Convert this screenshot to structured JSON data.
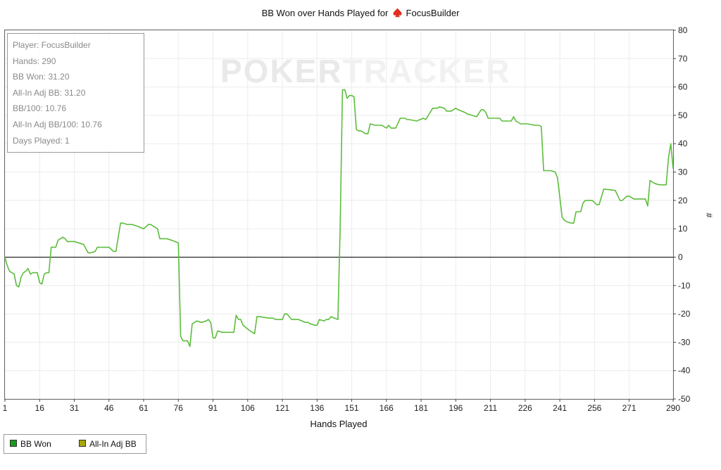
{
  "title": {
    "text": "BB Won over Hands Played for",
    "player": "FocusBuilder"
  },
  "watermark": {
    "part1": "POKER",
    "part2": "TRACKER"
  },
  "info_box": [
    "Player: FocusBuilder",
    "Hands: 290",
    "BB Won: 31.20",
    "All-In Adj BB: 31.20",
    "BB/100: 10.76",
    "All-In Adj BB/100: 10.76",
    "Days Played: 1"
  ],
  "legend": {
    "items": [
      {
        "label": "BB Won",
        "color": "#1a9a1a"
      },
      {
        "label": "All-In Adj BB",
        "color": "#a8a800"
      }
    ]
  },
  "colors": {
    "line": "#5cbd3c",
    "grid": "#ebebeb",
    "zero_line": "#000000",
    "frame": "#666666"
  },
  "chart_data": {
    "type": "line",
    "title": "BB Won over Hands Played for FocusBuilder",
    "xlabel": "Hands Played",
    "ylabel": "#",
    "xlim": [
      1,
      290
    ],
    "ylim": [
      -50,
      80
    ],
    "x_ticks": [
      1,
      16,
      31,
      46,
      61,
      76,
      91,
      106,
      121,
      136,
      151,
      166,
      181,
      196,
      211,
      226,
      241,
      256,
      271,
      290
    ],
    "y_ticks": [
      80,
      70,
      60,
      50,
      40,
      30,
      20,
      10,
      0,
      -10,
      -20,
      -30,
      -40,
      -50
    ],
    "grid": true,
    "legend_position": "bottom-left",
    "series": [
      {
        "name": "BB Won",
        "x": [
          1,
          2,
          3,
          5,
          6,
          7,
          8,
          9,
          10,
          11,
          12,
          13,
          15,
          16,
          17,
          18,
          19,
          20,
          21,
          22,
          23,
          24,
          25,
          26,
          27,
          28,
          29,
          30,
          31,
          35,
          37,
          38,
          40,
          41,
          42,
          46,
          48,
          49,
          51,
          52,
          54,
          55,
          56,
          58,
          61,
          63,
          64,
          65,
          66,
          67,
          68,
          70,
          71,
          73,
          76,
          77,
          78,
          80,
          81,
          82,
          83,
          84,
          86,
          88,
          89,
          90,
          91,
          92,
          93,
          95,
          96,
          100,
          101,
          102,
          103,
          104,
          107,
          109,
          110,
          111,
          115,
          117,
          118,
          120,
          121,
          122,
          123,
          125,
          127,
          128,
          131,
          132,
          133,
          135,
          136,
          137,
          139,
          140,
          141,
          142,
          145,
          146,
          147,
          148,
          149,
          150,
          151,
          152,
          153,
          154,
          155,
          157,
          158,
          159,
          161,
          162,
          164,
          166,
          167,
          168,
          170,
          172,
          174,
          175,
          176,
          179,
          182,
          183,
          186,
          188,
          189,
          191,
          192,
          194,
          196,
          197,
          200,
          201,
          203,
          205,
          207,
          208,
          209,
          210,
          212,
          215,
          216,
          218,
          220,
          221,
          222,
          224,
          227,
          230,
          232,
          233,
          234,
          237,
          239,
          240,
          242,
          243,
          244,
          246,
          247,
          248,
          250,
          251,
          252,
          255,
          257,
          258,
          260,
          265,
          267,
          268,
          270,
          271,
          273,
          278,
          279,
          280,
          281,
          282,
          284,
          285,
          286,
          287,
          288,
          289,
          290
        ],
        "y": [
          0,
          -3,
          -5,
          -6,
          -10,
          -10.5,
          -7,
          -5.5,
          -5,
          -4,
          -6,
          -5.5,
          -5.5,
          -9,
          -9.5,
          -6,
          -5.5,
          -5.5,
          3.5,
          3.5,
          3.5,
          6,
          6.5,
          7,
          6.5,
          5.5,
          5.5,
          5.5,
          5.5,
          4.5,
          1.5,
          1.5,
          2,
          3.5,
          3.5,
          3.5,
          2,
          2,
          12,
          12,
          11.5,
          11.5,
          11.5,
          11,
          10,
          11.5,
          11.5,
          11,
          10.5,
          10,
          6.5,
          6.5,
          6.5,
          6,
          5,
          -28,
          -29.5,
          -29.5,
          -31.5,
          -23.5,
          -23,
          -22.5,
          -23,
          -22.5,
          -22,
          -23,
          -28.5,
          -28.5,
          -26,
          -26.5,
          -26.5,
          -26.5,
          -20.5,
          -22,
          -22,
          -24,
          -26,
          -27,
          -21,
          -21,
          -21.5,
          -21.5,
          -22,
          -22,
          -22,
          -20,
          -20,
          -22,
          -22,
          -22,
          -23,
          -23,
          -23.5,
          -24,
          -24,
          -22,
          -22.5,
          -22,
          -22,
          -21,
          -22,
          10,
          59,
          59,
          56,
          57,
          57,
          56.5,
          45,
          44.5,
          44.5,
          43.5,
          43.5,
          47,
          46.5,
          46.5,
          46.5,
          45.5,
          46.5,
          45.5,
          45.5,
          49,
          49,
          48.5,
          48.5,
          48,
          49,
          48.5,
          52.5,
          52.5,
          53,
          52.5,
          51.5,
          51.5,
          52.5,
          52,
          51,
          50.5,
          50,
          49.5,
          52,
          52,
          51,
          49,
          49,
          49,
          48,
          48,
          48,
          49.5,
          48,
          47,
          47,
          46.5,
          46.5,
          46,
          30.5,
          30.5,
          30,
          28,
          14,
          13,
          12.5,
          12,
          12,
          16,
          16,
          19,
          20,
          20,
          18.5,
          18.5,
          24,
          23.5,
          20,
          20,
          21.5,
          21.5,
          20.5,
          20.5,
          18,
          27,
          26.5,
          26,
          25.5,
          25.5,
          25.5,
          25.5,
          35,
          40,
          31.2
        ]
      },
      {
        "name": "All-In Adj BB",
        "x": [],
        "y": []
      }
    ]
  }
}
